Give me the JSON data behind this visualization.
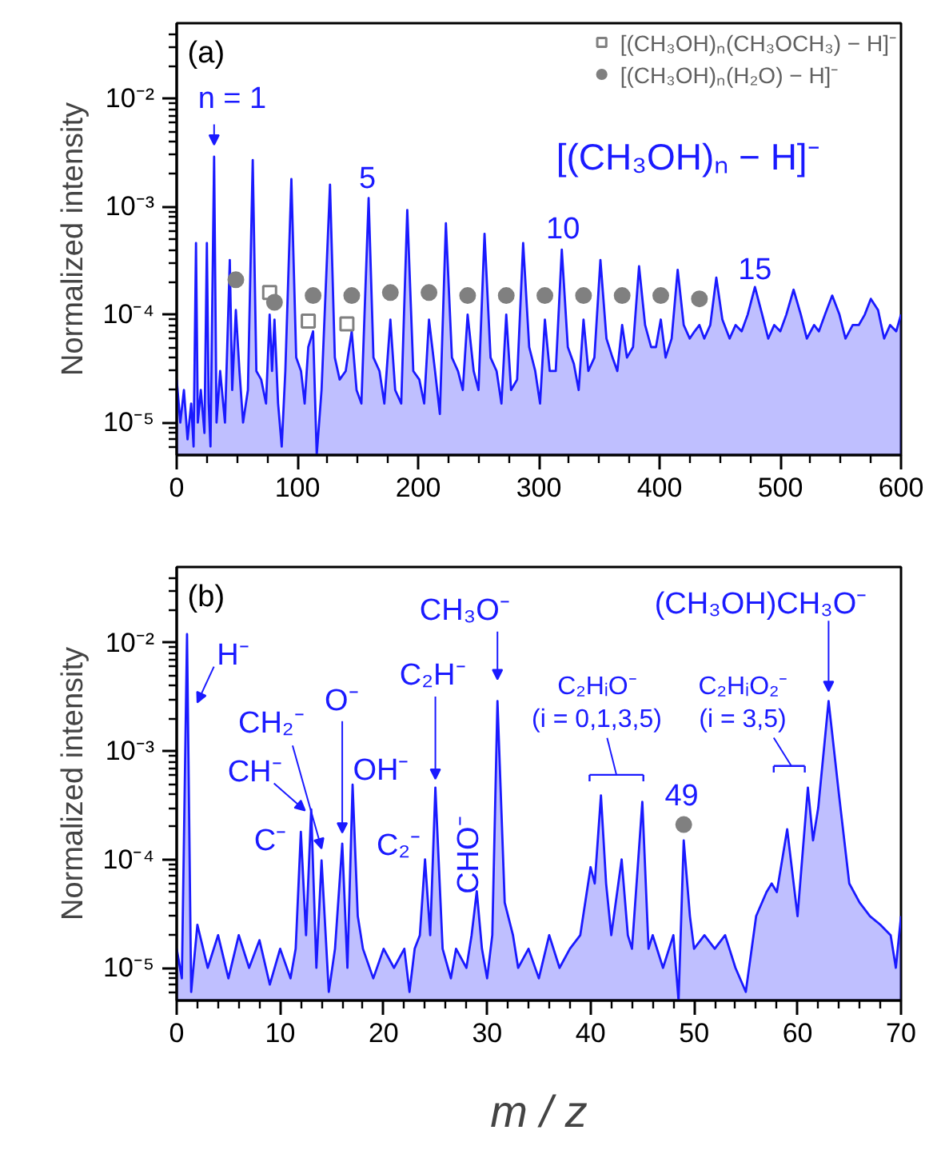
{
  "chart_data": [
    {
      "type": "area",
      "ylabel": "Normalized intensity",
      "log": true,
      "xlim": [
        0,
        600
      ],
      "ylim": [
        5e-06,
        0.05
      ],
      "legend": "top right",
      "xticks": [
        0,
        {
          "value": 25,
          "label": null
        },
        {
          "value": 50,
          "label": null
        },
        {
          "value": 75,
          "label": null
        },
        100,
        {
          "value": 125,
          "label": null
        },
        {
          "value": 150,
          "label": null
        },
        {
          "value": 175,
          "label": null
        },
        200,
        {
          "value": 225,
          "label": null
        },
        {
          "value": 250,
          "label": null
        },
        {
          "value": 275,
          "label": null
        },
        300,
        {
          "value": 325,
          "label": null
        },
        {
          "value": 350,
          "label": null
        },
        {
          "value": 375,
          "label": null
        },
        400,
        {
          "value": 425,
          "label": null
        },
        {
          "value": 450,
          "label": null
        },
        {
          "value": 475,
          "label": null
        },
        500,
        {
          "value": 525,
          "label": null
        },
        {
          "value": 550,
          "label": null
        },
        {
          "value": 575,
          "label": null
        },
        600
      ],
      "yticks": [
        {
          "value": 6e-06,
          "label": null
        },
        {
          "value": 7e-06,
          "label": null
        },
        {
          "value": 8e-06,
          "label": null
        },
        {
          "value": 9e-06,
          "label": null
        },
        {
          "value": 1e-05,
          "label": "10⁻⁵"
        },
        {
          "value": 2e-05,
          "label": null
        },
        {
          "value": 3e-05,
          "label": null
        },
        {
          "value": 4e-05,
          "label": null
        },
        {
          "value": 5e-05,
          "label": null
        },
        {
          "value": 6e-05,
          "label": null
        },
        {
          "value": 7e-05,
          "label": null
        },
        {
          "value": 8e-05,
          "label": null
        },
        {
          "value": 9e-05,
          "label": null
        },
        {
          "value": 0.0001,
          "label": "10⁻⁴"
        },
        {
          "value": 0.0002,
          "label": null
        },
        {
          "value": 0.0003,
          "label": null
        },
        {
          "value": 0.0004,
          "label": null
        },
        {
          "value": 0.0005,
          "label": null
        },
        {
          "value": 0.0006,
          "label": null
        },
        {
          "value": 0.0007,
          "label": null
        },
        {
          "value": 0.0008,
          "label": null
        },
        {
          "value": 0.0009,
          "label": null
        },
        {
          "value": 0.001,
          "label": "10⁻³"
        },
        {
          "value": 0.002,
          "label": null
        },
        {
          "value": 0.003,
          "label": null
        },
        {
          "value": 0.004,
          "label": null
        },
        {
          "value": 0.005,
          "label": null
        },
        {
          "value": 0.006,
          "label": null
        },
        {
          "value": 0.007,
          "label": null
        },
        {
          "value": 0.008,
          "label": null
        },
        {
          "value": 0.009,
          "label": null
        },
        {
          "value": 0.01,
          "label": "10⁻²"
        },
        {
          "value": 0.02,
          "label": null
        },
        {
          "value": 0.03,
          "label": null
        },
        {
          "value": 0.04,
          "label": null
        }
      ],
      "annotations": [
        "(a)",
        {
          "text": "n = 1",
          "x": 31,
          "y": 0.0029
        },
        {
          "text": "5",
          "x": 159,
          "y": 0.0012
        },
        {
          "text": "10",
          "x": 319,
          "y": 0.0004
        },
        {
          "text": "15",
          "x": 479,
          "y": 0.00018
        }
      ],
      "series": [
        {
          "name": "[(CH₃OH)ₙ − H]⁻",
          "color": "#1a1aff",
          "x": [
            0,
            3,
            6,
            9,
            12,
            14,
            16,
            17.5,
            20,
            23,
            25,
            26.5,
            28,
            31,
            33,
            36,
            40,
            44,
            46,
            49,
            52,
            55,
            59,
            63,
            66,
            70,
            74,
            77,
            79,
            81,
            84,
            87,
            90,
            95,
            99,
            103,
            106,
            109,
            113,
            116,
            120,
            127,
            131,
            135,
            140,
            145,
            149,
            153,
            159,
            163,
            168,
            172,
            177,
            181,
            186,
            191,
            196,
            201,
            205,
            209,
            214,
            218,
            223,
            228,
            233,
            237,
            241,
            246,
            250,
            255,
            260,
            265,
            269,
            273,
            277,
            282,
            287,
            292,
            297,
            301,
            305,
            309,
            314,
            319,
            324,
            329,
            333,
            337,
            341,
            346,
            351,
            356,
            361,
            365,
            369,
            373,
            378,
            383,
            388,
            393,
            397,
            401,
            405,
            410,
            415,
            420,
            425,
            429,
            433,
            437,
            442,
            447,
            452,
            458,
            463,
            468,
            473,
            479,
            485,
            490,
            495,
            500,
            505,
            511,
            517,
            522,
            528,
            532,
            537,
            543,
            549,
            554,
            560,
            565,
            570,
            575,
            581,
            586,
            591,
            596,
            600
          ],
          "values": [
            2.5e-05,
            1e-05,
            2e-05,
            7e-06,
            1.5e-05,
            6e-06,
            0.00046,
            1e-05,
            2e-05,
            8e-06,
            0.00046,
            1.5e-05,
            6e-06,
            0.0029,
            1e-05,
            3e-05,
            1e-05,
            0.00032,
            2e-05,
            0.00011,
            3e-05,
            1e-05,
            2e-05,
            0.0027,
            3e-05,
            2.5e-05,
            1.5e-05,
            0.0001,
            3e-05,
            9e-05,
            1.5e-05,
            6e-06,
            3e-05,
            0.0018,
            4e-05,
            3e-05,
            1.5e-05,
            5e-05,
            7e-05,
            5e-06,
            2e-05,
            0.0016,
            4e-05,
            2.5e-05,
            3e-05,
            7e-05,
            2e-05,
            1.5e-05,
            0.0012,
            4e-05,
            3e-05,
            1.5e-05,
            9e-05,
            2e-05,
            1.5e-05,
            0.00093,
            3e-05,
            2.5e-05,
            1.5e-05,
            9e-05,
            3e-05,
            1.2e-05,
            0.0007,
            4e-05,
            3e-05,
            2e-05,
            0.0001,
            3e-05,
            2e-05,
            0.00056,
            4e-05,
            3e-05,
            1.5e-05,
            0.0001,
            2e-05,
            2.5e-05,
            0.00046,
            5e-05,
            3e-05,
            1.5e-05,
            9e-05,
            3e-05,
            3e-05,
            0.0004,
            5e-05,
            3.5e-05,
            2e-05,
            9e-05,
            3e-05,
            4e-05,
            0.00032,
            6e-05,
            4e-05,
            3e-05,
            8e-05,
            4e-05,
            5e-05,
            0.00028,
            8e-05,
            5e-05,
            5e-05,
            9e-05,
            4e-05,
            6e-05,
            0.00026,
            8e-05,
            6e-05,
            7e-05,
            8e-05,
            6e-05,
            8e-05,
            0.00022,
            9e-05,
            6e-05,
            8e-05,
            7e-05,
            0.0001,
            0.00018,
            0.0001,
            6e-05,
            8e-05,
            7e-05,
            0.0001,
            0.00017,
            0.0001,
            6e-05,
            8e-05,
            7e-05,
            0.0001,
            0.00015,
            0.0001,
            6e-05,
            8e-05,
            8e-05,
            0.0001,
            0.00014,
            0.00011,
            6e-05,
            8e-05,
            7e-05,
            0.0001
          ]
        },
        {
          "name": "[(CH₃OH)ₙ(CH₃OCH₃) − H]⁻",
          "type": "scatter",
          "marker": "square",
          "color": "#808080",
          "x": [
            77,
            109,
            141
          ],
          "values": [
            0.00016,
            8.7e-05,
            8.2e-05
          ]
        },
        {
          "name": "[(CH₃OH)ₙ(H₂O) − H]⁻",
          "type": "scatter",
          "marker": "circle",
          "color": "#808080",
          "x": [
            49,
            81,
            113,
            145,
            177,
            209,
            241,
            273,
            305,
            337,
            369,
            401,
            433
          ],
          "values": [
            0.00021,
            0.00013,
            0.00015,
            0.00015,
            0.00016,
            0.00016,
            0.00015,
            0.00015,
            0.00015,
            0.00015,
            0.00015,
            0.00015,
            0.00014
          ]
        }
      ]
    },
    {
      "type": "area",
      "xlabel": "m / z",
      "ylabel": "Normalized intensity",
      "log": true,
      "xlim": [
        0,
        70
      ],
      "ylim": [
        5e-06,
        0.05
      ],
      "xticks": [
        0,
        {
          "value": 2,
          "label": null
        },
        {
          "value": 4,
          "label": null
        },
        {
          "value": 6,
          "label": null
        },
        {
          "value": 8,
          "label": null
        },
        10,
        {
          "value": 12,
          "label": null
        },
        {
          "value": 14,
          "label": null
        },
        {
          "value": 16,
          "label": null
        },
        {
          "value": 18,
          "label": null
        },
        20,
        {
          "value": 22,
          "label": null
        },
        {
          "value": 24,
          "label": null
        },
        {
          "value": 26,
          "label": null
        },
        {
          "value": 28,
          "label": null
        },
        30,
        {
          "value": 32,
          "label": null
        },
        {
          "value": 34,
          "label": null
        },
        {
          "value": 36,
          "label": null
        },
        {
          "value": 38,
          "label": null
        },
        40,
        {
          "value": 42,
          "label": null
        },
        {
          "value": 44,
          "label": null
        },
        {
          "value": 46,
          "label": null
        },
        {
          "value": 48,
          "label": null
        },
        50,
        {
          "value": 52,
          "label": null
        },
        {
          "value": 54,
          "label": null
        },
        {
          "value": 56,
          "label": null
        },
        {
          "value": 58,
          "label": null
        },
        60,
        {
          "value": 62,
          "label": null
        },
        {
          "value": 64,
          "label": null
        },
        {
          "value": 66,
          "label": null
        },
        {
          "value": 68,
          "label": null
        },
        70
      ],
      "yticks": [
        {
          "value": 6e-06,
          "label": null
        },
        {
          "value": 7e-06,
          "label": null
        },
        {
          "value": 8e-06,
          "label": null
        },
        {
          "value": 9e-06,
          "label": null
        },
        {
          "value": 1e-05,
          "label": "10⁻⁵"
        },
        {
          "value": 2e-05,
          "label": null
        },
        {
          "value": 3e-05,
          "label": null
        },
        {
          "value": 4e-05,
          "label": null
        },
        {
          "value": 5e-05,
          "label": null
        },
        {
          "value": 6e-05,
          "label": null
        },
        {
          "value": 7e-05,
          "label": null
        },
        {
          "value": 8e-05,
          "label": null
        },
        {
          "value": 9e-05,
          "label": null
        },
        {
          "value": 0.0001,
          "label": "10⁻⁴"
        },
        {
          "value": 0.0002,
          "label": null
        },
        {
          "value": 0.0003,
          "label": null
        },
        {
          "value": 0.0004,
          "label": null
        },
        {
          "value": 0.0005,
          "label": null
        },
        {
          "value": 0.0006,
          "label": null
        },
        {
          "value": 0.0007,
          "label": null
        },
        {
          "value": 0.0008,
          "label": null
        },
        {
          "value": 0.0009,
          "label": null
        },
        {
          "value": 0.001,
          "label": "10⁻³"
        },
        {
          "value": 0.002,
          "label": null
        },
        {
          "value": 0.003,
          "label": null
        },
        {
          "value": 0.004,
          "label": null
        },
        {
          "value": 0.005,
          "label": null
        },
        {
          "value": 0.006,
          "label": null
        },
        {
          "value": 0.007,
          "label": null
        },
        {
          "value": 0.008,
          "label": null
        },
        {
          "value": 0.009,
          "label": null
        },
        {
          "value": 0.01,
          "label": "10⁻²"
        },
        {
          "value": 0.02,
          "label": null
        },
        {
          "value": 0.03,
          "label": null
        },
        {
          "value": 0.04,
          "label": null
        }
      ],
      "annotations": [
        "(b)",
        {
          "text": "H⁻",
          "x": 1,
          "y": 0.012
        },
        {
          "text": "CH⁻",
          "x": 13,
          "y": 0.00029
        },
        {
          "text": "CH₂⁻",
          "x": 14,
          "y": 9.8e-05
        },
        {
          "text": "O⁻",
          "x": 16,
          "y": 0.00014
        },
        {
          "text": "OH⁻",
          "x": 17,
          "y": 0.00049
        },
        {
          "text": "C⁻",
          "x": 12,
          "y": 0.00018
        },
        {
          "text": "C₂⁻",
          "x": 24,
          "y": 0.0001
        },
        {
          "text": "C₂H⁻",
          "x": 25,
          "y": 0.00046
        },
        {
          "text": "CHO⁻",
          "x": 29,
          "y": 5.1e-05
        },
        {
          "text": "CH₃O⁻",
          "x": 31,
          "y": 0.0029
        },
        {
          "text": "C₂HᵢO⁻\n(i = 0,1,3,5)",
          "x": 41,
          "y": 0.00039
        },
        {
          "text": "49",
          "x": 49,
          "y": 0.00021
        },
        {
          "text": "C₂HᵢO₂⁻\n(i = 3,5)",
          "x": 61,
          "y": 0.00046
        },
        {
          "text": "(CH₃OH)CH₃O⁻",
          "x": 63,
          "y": 0.0029
        }
      ],
      "series": [
        {
          "color": "#1a1aff",
          "x": [
            0,
            0.5,
            1,
            1.4,
            2,
            3,
            4,
            5,
            6,
            7,
            8,
            9,
            10,
            11,
            11.5,
            12,
            12.5,
            13,
            13.5,
            14,
            14.7,
            15.3,
            16,
            16.5,
            17,
            17.5,
            18,
            19,
            20,
            21,
            22,
            22.5,
            23,
            23.5,
            24,
            24.5,
            25,
            25.7,
            26.5,
            27,
            28,
            28.5,
            29,
            29.5,
            30,
            30.5,
            31,
            31.7,
            32.5,
            33,
            34,
            35,
            36,
            37,
            38,
            39,
            40,
            40.4,
            41,
            41.5,
            42,
            43,
            43.6,
            44,
            45,
            45.6,
            46,
            47,
            48,
            48.5,
            49,
            49.6,
            50,
            51,
            52,
            53,
            54,
            55,
            56,
            57,
            57.5,
            58,
            59,
            60,
            61,
            61.5,
            62,
            63,
            64,
            65,
            66,
            67,
            68,
            69,
            69.5,
            70
          ],
          "values": [
            1.5e-05,
            8e-06,
            0.012,
            6e-06,
            2.5e-05,
            1e-05,
            2e-05,
            8e-06,
            2e-05,
            1e-05,
            1.8e-05,
            7e-06,
            1.5e-05,
            8e-06,
            1.5e-05,
            0.00018,
            2e-05,
            0.00029,
            1e-05,
            9.8e-05,
            6e-06,
            1.5e-05,
            0.00014,
            1e-05,
            0.00049,
            3e-05,
            1.5e-05,
            8e-06,
            1.5e-05,
            1e-05,
            1.5e-05,
            6e-06,
            1.5e-05,
            2e-05,
            0.0001,
            2e-05,
            0.00046,
            1.5e-05,
            8e-06,
            1.5e-05,
            1e-05,
            2e-05,
            5.1e-05,
            1.5e-05,
            8e-06,
            2e-05,
            0.0029,
            4e-05,
            2e-05,
            1e-05,
            1.5e-05,
            8e-06,
            2e-05,
            1e-05,
            1.5e-05,
            2e-05,
            8.5e-05,
            6e-05,
            0.00039,
            6e-05,
            2e-05,
            0.0001,
            2e-05,
            1.5e-05,
            0.00034,
            1.5e-05,
            2e-05,
            1e-05,
            2e-05,
            5e-06,
            0.00015,
            3e-05,
            1.5e-05,
            2e-05,
            1.5e-05,
            2e-05,
            1e-05,
            6e-06,
            3e-05,
            5e-05,
            6e-05,
            5e-05,
            0.00019,
            3e-05,
            0.00046,
            0.00015,
            0.0003,
            0.0029,
            0.0004,
            6e-05,
            4e-05,
            3e-05,
            2.5e-05,
            2e-05,
            1e-05,
            3e-05
          ]
        },
        {
          "type": "scatter",
          "marker": "circle",
          "color": "#808080",
          "x": [
            49
          ],
          "values": [
            0.00021
          ]
        }
      ]
    }
  ]
}
